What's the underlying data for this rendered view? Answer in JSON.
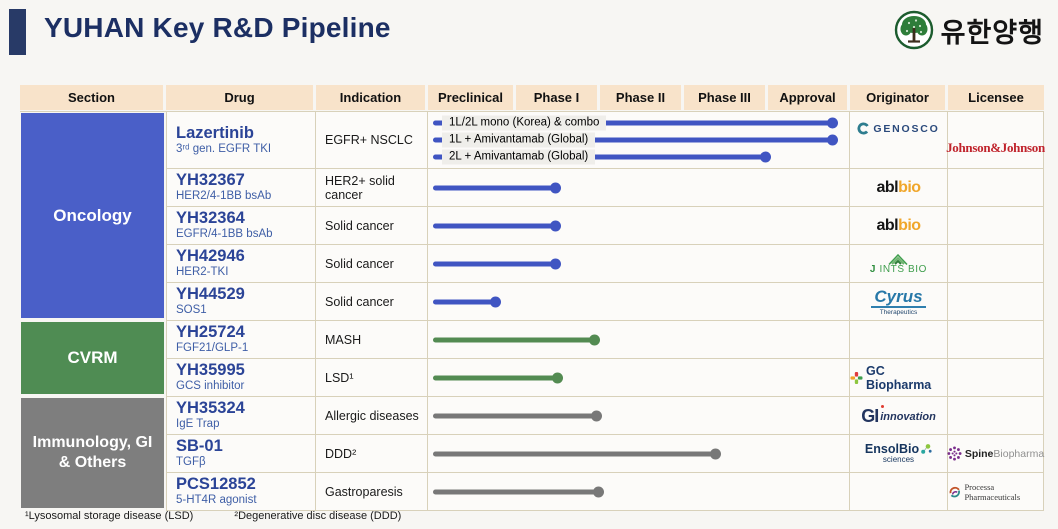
{
  "slide": {
    "title": "YUHAN Key R&D Pipeline",
    "logo": {
      "company_kr": "유한양행",
      "emblem": "tree-emblem"
    },
    "footnotes": [
      "¹Lysosomal storage disease (LSD)",
      "²Degenerative disc disease (DDD)"
    ]
  },
  "colors": {
    "title_navy": "#1c2f63",
    "accent_bar": "#283a67",
    "header_bg": "#f8e3ca",
    "table_border": "#d8d1ba",
    "row_bg": "#fcfbf9",
    "label_bg": "#efeeea",
    "oncology_section": "#4a5fc8",
    "cvrm_section": "#4f8c53",
    "immunology_section": "#7e7e7e",
    "bar_blue": "#4055c2",
    "bar_green": "#538b52",
    "bar_gray": "#787878",
    "jnj_red": "#c0232c"
  },
  "table": {
    "headers": [
      "Section",
      "Drug",
      "Indication",
      "Preclinical",
      "Phase I",
      "Phase II",
      "Phase III",
      "Approval",
      "Originator",
      "Licensee"
    ]
  },
  "chart_data": {
    "type": "table",
    "title": "YUHAN Key R&D Pipeline",
    "phase_columns": [
      "Preclinical",
      "Phase I",
      "Phase II",
      "Phase III",
      "Approval"
    ],
    "phase_axis_note": "bar progress is fraction of full Preclinical-to-Approval track",
    "sections": [
      {
        "name": "Oncology",
        "section_color": "#4a5fc8",
        "bar_color": "#4055c2",
        "rows": [
          {
            "drug": "Lazertinib",
            "target": "3ʳᵈ gen. EGFR TKI",
            "indication": "EGFR+ NSCLC",
            "originator_logo": "genosco",
            "licensee_logo": "jnj",
            "bars": [
              {
                "label": "1L/2L mono (Korea) & combo",
                "progress": 0.957,
                "reached": "Approval"
              },
              {
                "label": "1L + Amivantamab (Global)",
                "progress": 0.957,
                "reached": "Approval"
              },
              {
                "label": "2L + Amivantamab (Global)",
                "progress": 0.799,
                "reached": "Phase III"
              }
            ]
          },
          {
            "drug": "YH32367",
            "target": "HER2/4-1BB bsAb",
            "indication": "HER2+ solid cancer",
            "originator_logo": "ablbio",
            "licensee_logo": "",
            "bars": [
              {
                "label": "",
                "progress": 0.301,
                "reached": "Phase I"
              }
            ]
          },
          {
            "drug": "YH32364",
            "target": "EGFR/4-1BB bsAb",
            "indication": "Solid cancer",
            "originator_logo": "ablbio",
            "licensee_logo": "",
            "bars": [
              {
                "label": "",
                "progress": 0.301,
                "reached": "Phase I"
              }
            ]
          },
          {
            "drug": "YH42946",
            "target": "HER2-TKI",
            "indication": "Solid cancer",
            "originator_logo": "jintsbio",
            "licensee_logo": "",
            "bars": [
              {
                "label": "",
                "progress": 0.301,
                "reached": "Phase I"
              }
            ]
          },
          {
            "drug": "YH44529",
            "target": "SOS1",
            "indication": "Solid cancer",
            "originator_logo": "cyrus",
            "licensee_logo": "",
            "bars": [
              {
                "label": "",
                "progress": 0.159,
                "reached": "Preclinical"
              }
            ]
          }
        ]
      },
      {
        "name": "CVRM",
        "section_color": "#4f8c53",
        "bar_color": "#538b52",
        "rows": [
          {
            "drug": "YH25724",
            "target": "FGF21/GLP-1",
            "indication": "MASH",
            "originator_logo": "",
            "licensee_logo": "",
            "bars": [
              {
                "label": "",
                "progress": 0.393,
                "reached": "Phase I/II"
              }
            ]
          },
          {
            "drug": "YH35995",
            "target": "GCS inhibitor",
            "indication": "LSD¹",
            "originator_logo": "gcbiopharma",
            "licensee_logo": "",
            "bars": [
              {
                "label": "",
                "progress": 0.306,
                "reached": "Phase I"
              }
            ]
          }
        ]
      },
      {
        "name": "Immunology, GI & Others",
        "section_color": "#7e7e7e",
        "bar_color": "#787878",
        "rows": [
          {
            "drug": "YH35324",
            "target": "IgE Trap",
            "indication": "Allergic diseases",
            "originator_logo": "giinnovation",
            "licensee_logo": "",
            "bars": [
              {
                "label": "",
                "progress": 0.398,
                "reached": "Phase I/II"
              }
            ]
          },
          {
            "drug": "SB-01",
            "target": "TGFβ",
            "indication": "DDD²",
            "originator_logo": "ensolbio",
            "licensee_logo": "spinebiopharma",
            "bars": [
              {
                "label": "",
                "progress": 0.68,
                "reached": "Phase III"
              }
            ]
          },
          {
            "drug": "PCS12852",
            "target": "5-HT4R agonist",
            "indication": "Gastroparesis",
            "originator_logo": "",
            "licensee_logo": "processa",
            "bars": [
              {
                "label": "",
                "progress": 0.403,
                "reached": "Phase I/II"
              }
            ]
          }
        ]
      }
    ]
  },
  "logos": {
    "genosco": {
      "text": "GENOSCO"
    },
    "ablbio": {
      "text_black": "abl",
      "text_orange": "bio"
    },
    "jintsbio": {
      "text_j": "J",
      "text_rest": " INTS BIO"
    },
    "cyrus": {
      "text": "Cyrus",
      "sub": "Therapeutics"
    },
    "gcbiopharma": {
      "text": "GC Biopharma"
    },
    "giinnovation": {
      "text_gi": "GI",
      "text_rest": "innovation"
    },
    "ensolbio": {
      "text": "EnsolBio",
      "sub": "sciences"
    },
    "spinebiopharma": {
      "text_bold": "Spine",
      "text_light": "Biopharma"
    },
    "jnj": {
      "text": "Johnson&Johnson"
    },
    "processa": {
      "text": "Processa Pharmaceuticals"
    }
  }
}
